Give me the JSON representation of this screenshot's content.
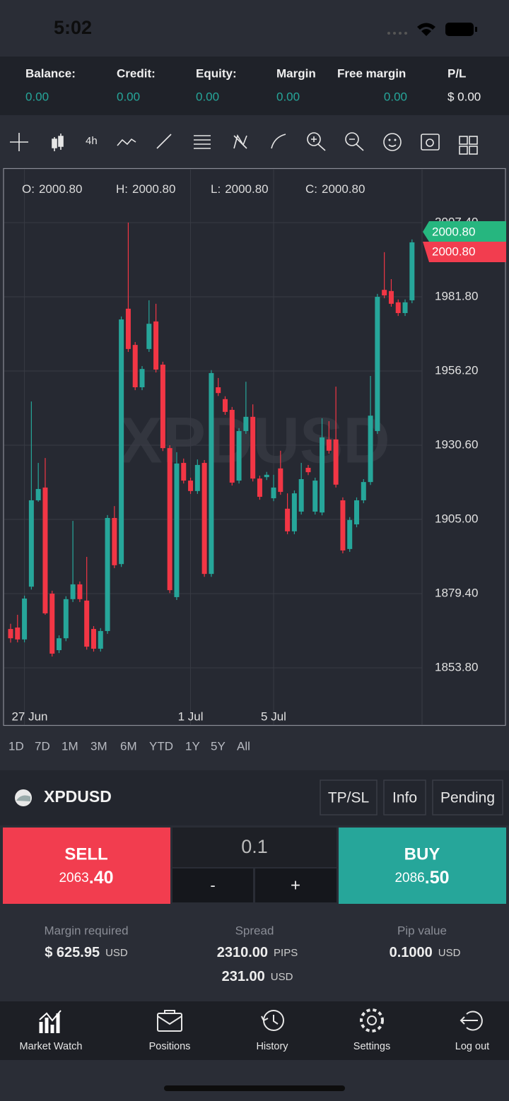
{
  "status_bar": {
    "time": "5:02"
  },
  "account": [
    {
      "label": "Balance:",
      "value": "0.00"
    },
    {
      "label": "Credit:",
      "value": "0.00"
    },
    {
      "label": "Equity:",
      "value": "0.00"
    },
    {
      "label": "Margin",
      "value": "0.00"
    },
    {
      "label": "Free margin",
      "value": "0.00"
    },
    {
      "label": "P/L",
      "value": "$ 0.00"
    }
  ],
  "toolbar": {
    "interval": "4h"
  },
  "ohlc": [
    {
      "label": "O:",
      "value": "2000.80"
    },
    {
      "label": "H:",
      "value": "2000.80"
    },
    {
      "label": "L:",
      "value": "2000.80"
    },
    {
      "label": "C:",
      "value": "2000.80"
    }
  ],
  "watermark": "XPDUSD",
  "price_tags": {
    "ask": "2000.80",
    "bid": "2000.80"
  },
  "chart_data": {
    "type": "candlestick",
    "categories": [
      null,
      null,
      "27 Jun",
      null,
      null,
      null,
      null,
      null,
      null,
      null,
      null,
      null,
      null,
      null,
      null,
      null,
      null,
      null,
      null,
      null,
      null,
      null,
      null,
      null,
      null,
      null,
      "1 Jul",
      null,
      null,
      null,
      null,
      null,
      null,
      null,
      null,
      null,
      null,
      null,
      "5 Jul",
      null,
      null,
      null,
      null,
      null,
      null,
      null,
      null,
      null,
      null,
      null,
      null,
      null,
      null,
      null,
      null,
      null,
      null,
      null,
      null
    ],
    "open": [
      1867.2,
      1867.7,
      1863.6,
      1881.8,
      1911.6,
      1916.0,
      1879.4,
      1859.9,
      1864.0,
      1877.5,
      1882.6,
      1877.0,
      1867.2,
      1860.4,
      1866.5,
      1905.5,
      1889.6,
      1977.7,
      1965.2,
      1950.6,
      1963.8,
      1973.3,
      1958.4,
      1929.6,
      1878.2,
      1924.5,
      1918.4,
      1914.8,
      1924.5,
      1886.2,
      1950.6,
      1946.5,
      1942.8,
      1918.4,
      1935.5,
      1940.4,
      1919.1,
      1919.6,
      1912.3,
      1922.6,
      1908.7,
      1900.9,
      1907.7,
      1922.8,
      1907.7,
      1907.4,
      1932.6,
      1932.6,
      1911.6,
      1894.8,
      1903.3,
      1911.6,
      1917.9,
      1935.5,
      1984.2,
      1983.8,
      1979.9,
      1976.2,
      1980.6
    ],
    "high": [
      1869.0,
      1872.1,
      1878.7,
      1945.7,
      1924.5,
      1926.2,
      1880.4,
      1865.0,
      1878.5,
      1904.5,
      1883.6,
      1892.1,
      1868.2,
      1867.5,
      1906.5,
      1909.6,
      1975.0,
      2007.4,
      1966.2,
      1957.9,
      1980.6,
      1979.4,
      1959.4,
      1930.6,
      1928.2,
      1926.0,
      1919.4,
      1925.7,
      1925.5,
      1956.5,
      1953.8,
      1947.5,
      1943.8,
      1936.5,
      1952.5,
      1944.7,
      1920.1,
      1921.4,
      1920.4,
      1928.7,
      1914.0,
      1915.0,
      1924.5,
      1923.8,
      1919.4,
      1939.9,
      1938.9,
      1950.8,
      1912.6,
      1905.8,
      1912.6,
      1918.9,
      1954.5,
      1982.8,
      1997.2,
      1987.9,
      1980.9,
      1980.9,
      2001.6
    ],
    "low": [
      1862.5,
      1862.6,
      1862.6,
      1880.8,
      1911.1,
      1872.1,
      1857.7,
      1858.9,
      1863.0,
      1876.5,
      1876.5,
      1860.1,
      1859.4,
      1859.4,
      1865.5,
      1888.2,
      1888.6,
      1962.8,
      1949.6,
      1949.6,
      1962.8,
      1955.7,
      1928.6,
      1879.6,
      1877.2,
      1917.4,
      1913.8,
      1913.8,
      1885.2,
      1885.2,
      1947.6,
      1941.1,
      1916.7,
      1917.4,
      1934.5,
      1918.1,
      1911.8,
      1918.6,
      1911.3,
      1913.5,
      1899.9,
      1899.9,
      1906.7,
      1920.3,
      1906.7,
      1906.4,
      1927.7,
      1916.0,
      1893.3,
      1893.8,
      1902.3,
      1910.6,
      1916.9,
      1934.5,
      1981.3,
      1978.4,
      1975.2,
      1975.2,
      1979.6
    ],
    "close": [
      1864.0,
      1863.6,
      1877.7,
      1911.6,
      1915.5,
      1872.6,
      1858.7,
      1864.0,
      1877.5,
      1882.6,
      1877.5,
      1861.1,
      1860.4,
      1866.5,
      1905.5,
      1889.2,
      1974.0,
      1963.8,
      1950.6,
      1956.9,
      1972.5,
      1956.7,
      1929.6,
      1880.6,
      1924.3,
      1918.4,
      1914.8,
      1923.8,
      1886.2,
      1955.5,
      1948.6,
      1942.1,
      1917.7,
      1935.5,
      1940.4,
      1919.1,
      1912.8,
      1920.4,
      1916.0,
      1914.5,
      1900.9,
      1914.0,
      1918.9,
      1921.3,
      1918.4,
      1933.3,
      1928.7,
      1917.0,
      1894.3,
      1904.8,
      1911.6,
      1917.9,
      1940.8,
      1981.8,
      1982.3,
      1979.4,
      1976.2,
      1979.9,
      2000.6
    ],
    "up_color": "#26a69a",
    "down_color": "#f23645",
    "ylim": [
      1840.4,
      2013.5
    ],
    "yticks": [
      {
        "value": 1853.8,
        "label": "1853.80"
      },
      {
        "value": 1879.4,
        "label": "1879.40"
      },
      {
        "value": 1905,
        "label": "1905.00"
      },
      {
        "value": 1930.6,
        "label": "1930.60"
      },
      {
        "value": 1956.2,
        "label": "1956.20"
      },
      {
        "value": 1981.8,
        "label": "1981.80"
      },
      {
        "value": 2007.4,
        "label": "2007.40"
      }
    ],
    "grid": true
  },
  "periods": [
    "1D",
    "7D",
    "1M",
    "3M",
    "6M",
    "YTD",
    "1Y",
    "5Y",
    "All"
  ],
  "symbol": {
    "name": "XPDUSD",
    "tabs": [
      "TP/SL",
      "Info",
      "Pending"
    ]
  },
  "trade": {
    "sell": {
      "label": "SELL",
      "price_main": "2063",
      "price_pips": ".40"
    },
    "lot": "0.1",
    "minus": "-",
    "plus": "+",
    "buy": {
      "label": "BUY",
      "price_main": "2086",
      "price_pips": ".50"
    }
  },
  "info": {
    "margin": {
      "label": "Margin required",
      "value": "$ 625.95",
      "unit": "USD"
    },
    "spread": {
      "label": "Spread",
      "pips": "2310.00",
      "pips_unit": "PIPS",
      "value": "231.00",
      "unit": "USD"
    },
    "pip_value": {
      "label": "Pip value",
      "value": "0.1000",
      "unit": "USD"
    }
  },
  "nav": [
    "Market Watch",
    "Positions",
    "History",
    "Settings",
    "Log out"
  ]
}
